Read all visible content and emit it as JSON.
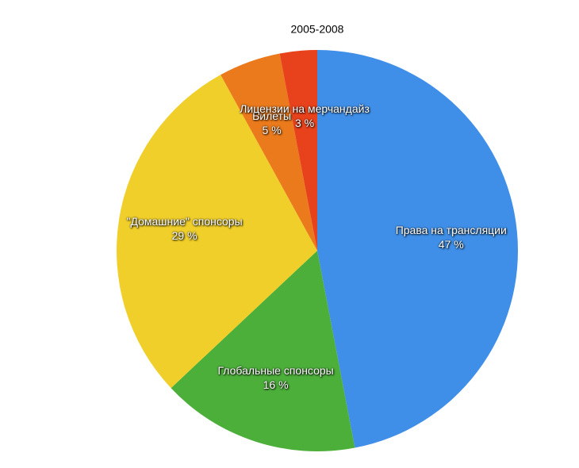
{
  "chart_data": {
    "type": "pie",
    "title": "2005-2008",
    "categories": [
      "Права на трансляции",
      "Глобальные спонсоры",
      "\"Домашние\" спонсоры",
      "Билеты",
      "Лицензии на мерчандайз"
    ],
    "values": [
      47,
      16,
      29,
      5,
      3
    ],
    "value_labels": [
      "47 %",
      "16 %",
      "29 %",
      "5 %",
      "3 %"
    ],
    "colors": [
      "#3f8fe8",
      "#4caf3a",
      "#f0cf2a",
      "#ea7a1c",
      "#e8421c"
    ]
  }
}
